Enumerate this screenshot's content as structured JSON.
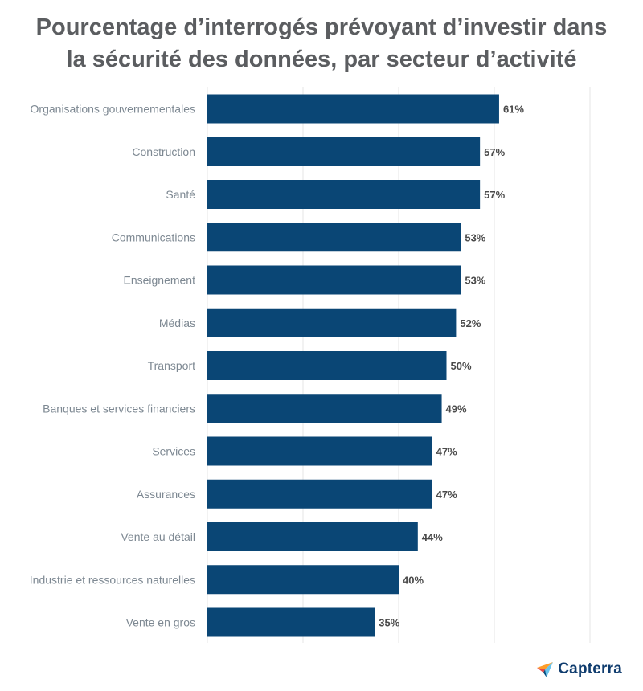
{
  "chart_data": {
    "type": "bar",
    "orientation": "horizontal",
    "title": "Pourcentage d’interrogés prévoyant d’investir dans\nla sécurité des données, par secteur d’activité",
    "categories": [
      "Organisations gouvernementales",
      "Construction",
      "Santé",
      "Communications",
      "Enseignement",
      "Médias",
      "Transport",
      "Banques et services financiers",
      "Services",
      "Assurances",
      "Vente au détail",
      "Industrie et ressources naturelles",
      "Vente en gros"
    ],
    "values": [
      61,
      57,
      57,
      53,
      53,
      52,
      50,
      49,
      47,
      47,
      44,
      40,
      35
    ],
    "value_labels": [
      "61%",
      "57%",
      "57%",
      "53%",
      "53%",
      "52%",
      "50%",
      "49%",
      "47%",
      "47%",
      "44%",
      "40%",
      "35%"
    ],
    "xlim": [
      0,
      80
    ],
    "grid_step": 20,
    "grid": true,
    "bar_color": "#0a4675",
    "xlabel": "",
    "ylabel": ""
  },
  "brand": {
    "name": "Capterra",
    "icon": "capterra-arrow-logo",
    "colors": [
      "#ff9d28",
      "#68c5ed",
      "#044d80",
      "#e54747"
    ]
  }
}
